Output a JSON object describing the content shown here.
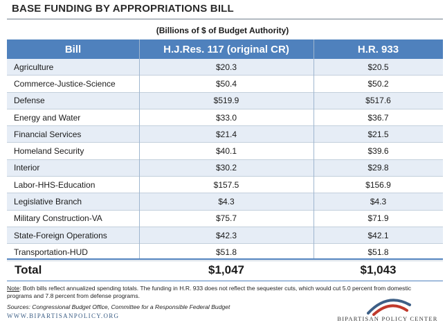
{
  "title": "BASE FUNDING BY APPROPRIATIONS BILL",
  "subtitle": "(Billions of $ of Budget Authority)",
  "table": {
    "headers": [
      "Bill",
      "H.J.Res. 117 (original CR)",
      "H.R. 933"
    ],
    "rows": [
      [
        "Agriculture",
        "$20.3",
        "$20.5"
      ],
      [
        "Commerce-Justice-Science",
        "$50.4",
        "$50.2"
      ],
      [
        "Defense",
        "$519.9",
        "$517.6"
      ],
      [
        "Energy and Water",
        "$33.0",
        "$36.7"
      ],
      [
        "Financial Services",
        "$21.4",
        "$21.5"
      ],
      [
        "Homeland Security",
        "$40.1",
        "$39.6"
      ],
      [
        "Interior",
        "$30.2",
        "$29.8"
      ],
      [
        "Labor-HHS-Education",
        "$157.5",
        "$156.9"
      ],
      [
        "Legislative Branch",
        "$4.3",
        "$4.3"
      ],
      [
        "Military Construction-VA",
        "$75.7",
        "$71.9"
      ],
      [
        "State-Foreign Operations",
        "$42.3",
        "$42.1"
      ],
      [
        "Transportation-HUD",
        "$51.8",
        "$51.8"
      ]
    ],
    "total": [
      "Total",
      "$1,047",
      "$1,043"
    ]
  },
  "note": {
    "label": "Note",
    "text": ": Both bills reflect annualized spending totals. The funding in H.R. 933 does not reflect the sequester cuts, which would cut 5.0 percent from domestic programs and 7.8 percent from defense programs."
  },
  "sources": "Sources: Congressional Budget Office, Committee for a Responsible Federal Budget",
  "website": "WWW.BIPARTISANPOLICY.ORG",
  "logo": {
    "text": "BIPARTISAN POLICY CENTER",
    "colors": {
      "blue": "#3d5f86",
      "red": "#c0392b"
    }
  },
  "colors": {
    "header_bg": "#4f81bd",
    "alt_row_bg": "#e6edf6"
  }
}
